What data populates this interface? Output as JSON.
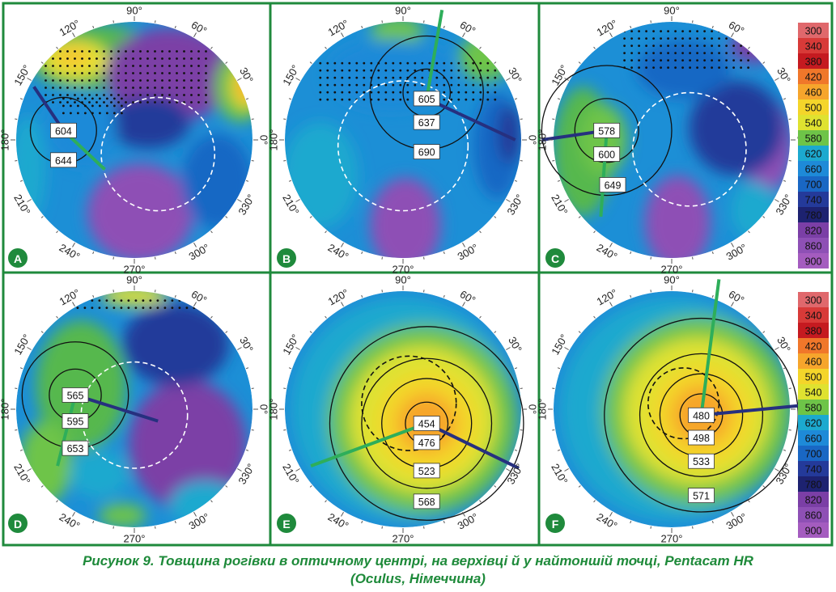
{
  "colors": {
    "frame": "#1f8a3c",
    "badge": "#1f8a3c",
    "caption": "#1e8a3a",
    "green_line": "#2eae5a",
    "blue_line": "#26307f"
  },
  "angle_labels": [
    "90°",
    "60°",
    "30°",
    "0°",
    "330°",
    "300°",
    "270°",
    "240°",
    "210°",
    "180°",
    "150°",
    "120°"
  ],
  "legend": {
    "values": [
      "300",
      "340",
      "380",
      "420",
      "460",
      "500",
      "540",
      "580",
      "620",
      "660",
      "700",
      "740",
      "780",
      "820",
      "860",
      "900"
    ],
    "colors": [
      "#e0686c",
      "#d83a38",
      "#c51a20",
      "#f0772a",
      "#f6a52c",
      "#f4d52a",
      "#dfe230",
      "#6ec448",
      "#1ca9cf",
      "#1e8ad8",
      "#1967c4",
      "#243a9a",
      "#1d2270",
      "#7b3fa6",
      "#8e50b5",
      "#a45cbf"
    ]
  },
  "panels": [
    {
      "letter": "A",
      "values": [
        "604",
        "644"
      ],
      "palette": "thick"
    },
    {
      "letter": "B",
      "values": [
        "605",
        "637",
        "690"
      ],
      "palette": "thick"
    },
    {
      "letter": "C",
      "values": [
        "578",
        "600",
        "649"
      ],
      "palette": "thick"
    },
    {
      "letter": "D",
      "values": [
        "565",
        "595",
        "653"
      ],
      "palette": "thick"
    },
    {
      "letter": "E",
      "values": [
        "454",
        "476",
        "523",
        "568"
      ],
      "palette": "thin"
    },
    {
      "letter": "F",
      "values": [
        "480",
        "498",
        "533",
        "571"
      ],
      "palette": "thin"
    }
  ],
  "caption": {
    "line1": "Рисунок 9. Товщина рогівки в оптичному центрі, на верхівці й у найтоншій точці, Pentacam HR",
    "line2": "(Oculus, Німеччина)"
  }
}
